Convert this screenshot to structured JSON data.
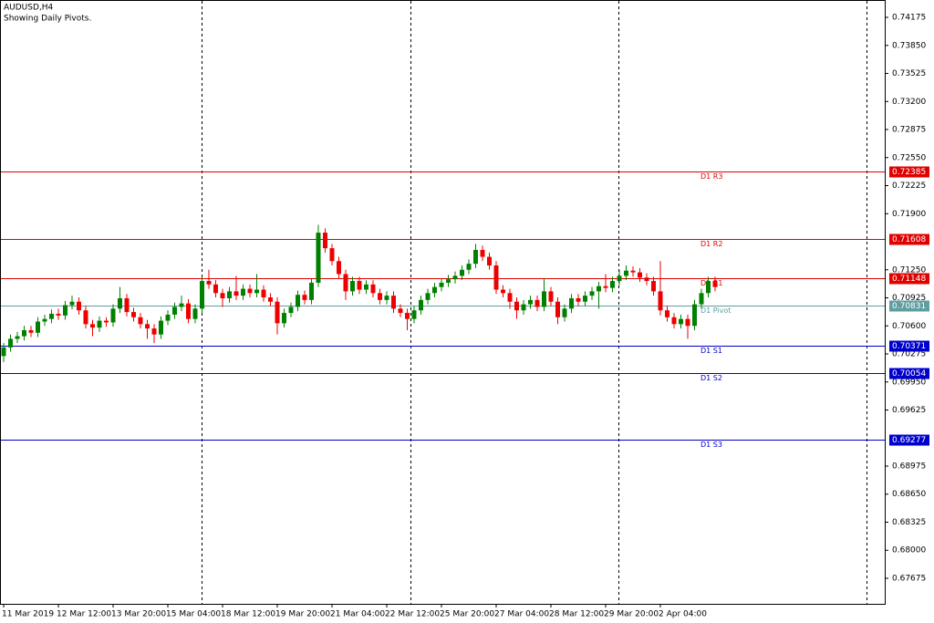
{
  "chart_data": {
    "type": "candlestick",
    "title": "AUDUSD,H4",
    "subtitle": "Showing Daily Pivots.",
    "up_color": "#008000",
    "down_color": "#ee0000",
    "ylim": [
      0.67379,
      0.74376
    ],
    "yticks": [
      0.74175,
      {
        "value": 0.7385,
        "label": "0.73850"
      },
      0.73525,
      {
        "value": 0.732,
        "label": "0.73200"
      },
      0.72875,
      {
        "value": 0.7255,
        "label": "0.72550"
      },
      0.72225,
      {
        "value": 0.719,
        "label": "0.71900"
      },
      {
        "value": 0.7125,
        "label": "0.71250"
      },
      0.70925,
      {
        "value": 0.706,
        "label": "0.70600"
      },
      0.70275,
      {
        "value": 0.6995,
        "label": "0.69950"
      },
      0.69625,
      0.68975,
      {
        "value": 0.6865,
        "label": "0.68650"
      },
      0.68325,
      {
        "value": 0.68,
        "label": "0.68000"
      },
      0.67675
    ],
    "levels": [
      {
        "name": "D1 R3",
        "value": 0.72385,
        "color": "#e00000"
      },
      {
        "name": "D1 R2",
        "value": 0.71608,
        "color": "#e00000"
      },
      {
        "name": "D1 R1",
        "value": 0.71148,
        "color": "#e00000"
      },
      {
        "name": "D1 Pivot",
        "value": 0.70831,
        "color": "#5f9ea0"
      },
      {
        "name": "D1 S1",
        "value": 0.70371,
        "color": "#0000cc"
      },
      {
        "name": "D1 S2",
        "value": 0.70054,
        "color": "#0000cc"
      },
      {
        "name": "D1 S3",
        "value": 0.69277,
        "color": "#0000cc"
      }
    ],
    "categories": [
      "11 Mar 2019",
      null,
      null,
      null,
      null,
      null,
      null,
      null,
      "12 Mar 12:00",
      null,
      null,
      null,
      null,
      null,
      null,
      null,
      "13 Mar 20:00",
      null,
      null,
      null,
      null,
      null,
      null,
      null,
      "15 Mar 04:00",
      null,
      null,
      null,
      null,
      null,
      null,
      null,
      "18 Mar 12:00",
      null,
      null,
      null,
      null,
      null,
      null,
      null,
      "19 Mar 20:00",
      null,
      null,
      null,
      null,
      null,
      null,
      null,
      "21 Mar 04:00",
      null,
      null,
      null,
      null,
      null,
      null,
      null,
      "22 Mar 12:00",
      null,
      null,
      null,
      null,
      null,
      null,
      null,
      "25 Mar 20:00",
      null,
      null,
      null,
      null,
      null,
      null,
      null,
      "27 Mar 04:00",
      null,
      null,
      null,
      null,
      null,
      null,
      null,
      "28 Mar 12:00",
      null,
      null,
      null,
      null,
      null,
      null,
      null,
      "29 Mar 20:00",
      null,
      null,
      null,
      null,
      null,
      null,
      null,
      "2 Apr 04:00",
      null,
      null,
      null,
      null,
      null,
      null,
      null,
      null
    ],
    "candles": [
      [
        0.7025,
        0.704,
        0.7018,
        0.7035
      ],
      [
        0.7035,
        0.705,
        0.703,
        0.7045
      ],
      [
        0.7045,
        0.7053,
        0.704,
        0.7048
      ],
      [
        0.7048,
        0.706,
        0.7043,
        0.7055
      ],
      [
        0.7055,
        0.706,
        0.7047,
        0.7052
      ],
      [
        0.7052,
        0.707,
        0.7047,
        0.7065
      ],
      [
        0.7065,
        0.7073,
        0.706,
        0.7068
      ],
      [
        0.7068,
        0.7079,
        0.7063,
        0.7074
      ],
      [
        0.7074,
        0.708,
        0.7067,
        0.7072
      ],
      [
        0.7072,
        0.7089,
        0.7067,
        0.7084
      ],
      [
        0.7084,
        0.7095,
        0.7079,
        0.7088
      ],
      [
        0.7088,
        0.7093,
        0.7073,
        0.7078
      ],
      [
        0.7078,
        0.7083,
        0.7057,
        0.7062
      ],
      [
        0.7062,
        0.7067,
        0.7048,
        0.7058
      ],
      [
        0.7058,
        0.7071,
        0.7053,
        0.7066
      ],
      [
        0.7066,
        0.707,
        0.7059,
        0.7064
      ],
      [
        0.7064,
        0.7085,
        0.7059,
        0.708
      ],
      [
        0.708,
        0.7105,
        0.7075,
        0.7092
      ],
      [
        0.7092,
        0.7097,
        0.7071,
        0.7076
      ],
      [
        0.7076,
        0.7081,
        0.7065,
        0.707
      ],
      [
        0.707,
        0.7075,
        0.7057,
        0.7062
      ],
      [
        0.7062,
        0.7067,
        0.7045,
        0.7057
      ],
      [
        0.7057,
        0.7062,
        0.704,
        0.705
      ],
      [
        0.705,
        0.7071,
        0.7045,
        0.7066
      ],
      [
        0.7066,
        0.7078,
        0.7061,
        0.7073
      ],
      [
        0.7073,
        0.7087,
        0.7068,
        0.7082
      ],
      [
        0.7082,
        0.7095,
        0.7077,
        0.7086
      ],
      [
        0.7086,
        0.7091,
        0.7063,
        0.7068
      ],
      [
        0.7068,
        0.7085,
        0.7063,
        0.708
      ],
      [
        0.708,
        0.7117,
        0.7075,
        0.7112
      ],
      [
        0.7112,
        0.7125,
        0.7103,
        0.7108
      ],
      [
        0.7108,
        0.7113,
        0.7093,
        0.7098
      ],
      [
        0.7098,
        0.7103,
        0.7082,
        0.7092
      ],
      [
        0.7092,
        0.7105,
        0.7087,
        0.71
      ],
      [
        0.71,
        0.7118,
        0.709,
        0.7095
      ],
      [
        0.7095,
        0.7108,
        0.709,
        0.7103
      ],
      [
        0.7103,
        0.7108,
        0.7093,
        0.7098
      ],
      [
        0.7098,
        0.712,
        0.7093,
        0.7102
      ],
      [
        0.7102,
        0.7107,
        0.7088,
        0.7093
      ],
      [
        0.7093,
        0.7098,
        0.7083,
        0.7088
      ],
      [
        0.7088,
        0.7093,
        0.705,
        0.7063
      ],
      [
        0.7063,
        0.708,
        0.7058,
        0.7075
      ],
      [
        0.7075,
        0.7087,
        0.707,
        0.7082
      ],
      [
        0.7082,
        0.7101,
        0.7077,
        0.7096
      ],
      [
        0.7096,
        0.7101,
        0.7085,
        0.709
      ],
      [
        0.709,
        0.7115,
        0.7085,
        0.711
      ],
      [
        0.711,
        0.7177,
        0.7105,
        0.7168
      ],
      [
        0.7168,
        0.7173,
        0.7145,
        0.715
      ],
      [
        0.715,
        0.7155,
        0.713,
        0.7135
      ],
      [
        0.7135,
        0.714,
        0.7115,
        0.712
      ],
      [
        0.712,
        0.7125,
        0.709,
        0.71
      ],
      [
        0.71,
        0.7117,
        0.7095,
        0.7112
      ],
      [
        0.7112,
        0.7117,
        0.7097,
        0.7102
      ],
      [
        0.7102,
        0.7113,
        0.7097,
        0.7108
      ],
      [
        0.7108,
        0.7113,
        0.7093,
        0.7098
      ],
      [
        0.7098,
        0.7103,
        0.7085,
        0.709
      ],
      [
        0.709,
        0.71,
        0.7085,
        0.7095
      ],
      [
        0.7095,
        0.71,
        0.7075,
        0.708
      ],
      [
        0.708,
        0.7085,
        0.707,
        0.7075
      ],
      [
        0.7075,
        0.708,
        0.7055,
        0.7068
      ],
      [
        0.7068,
        0.7083,
        0.7063,
        0.7078
      ],
      [
        0.7078,
        0.7095,
        0.7073,
        0.709
      ],
      [
        0.709,
        0.7103,
        0.7085,
        0.7098
      ],
      [
        0.7098,
        0.711,
        0.7093,
        0.7105
      ],
      [
        0.7105,
        0.7115,
        0.71,
        0.711
      ],
      [
        0.711,
        0.7119,
        0.7105,
        0.7114
      ],
      [
        0.7114,
        0.7123,
        0.7109,
        0.7118
      ],
      [
        0.7118,
        0.713,
        0.7113,
        0.7125
      ],
      [
        0.7125,
        0.7137,
        0.712,
        0.7132
      ],
      [
        0.7132,
        0.7155,
        0.7127,
        0.7148
      ],
      [
        0.7148,
        0.7153,
        0.7135,
        0.714
      ],
      [
        0.714,
        0.7145,
        0.7125,
        0.713
      ],
      [
        0.713,
        0.7135,
        0.7097,
        0.7102
      ],
      [
        0.7102,
        0.7107,
        0.7093,
        0.7098
      ],
      [
        0.7098,
        0.7103,
        0.708,
        0.7088
      ],
      [
        0.7088,
        0.7093,
        0.7068,
        0.7078
      ],
      [
        0.7078,
        0.709,
        0.7073,
        0.7085
      ],
      [
        0.7085,
        0.7095,
        0.708,
        0.709
      ],
      [
        0.709,
        0.7095,
        0.7077,
        0.7082
      ],
      [
        0.7082,
        0.7115,
        0.7077,
        0.71
      ],
      [
        0.71,
        0.7105,
        0.7083,
        0.7088
      ],
      [
        0.7088,
        0.7093,
        0.7062,
        0.707
      ],
      [
        0.707,
        0.7085,
        0.7065,
        0.708
      ],
      [
        0.708,
        0.7097,
        0.7075,
        0.7092
      ],
      [
        0.7092,
        0.7097,
        0.7083,
        0.7088
      ],
      [
        0.7088,
        0.71,
        0.7083,
        0.7095
      ],
      [
        0.7095,
        0.7105,
        0.709,
        0.71
      ],
      [
        0.71,
        0.7111,
        0.708,
        0.7106
      ],
      [
        0.7106,
        0.712,
        0.7099,
        0.7104
      ],
      [
        0.7104,
        0.7117,
        0.7099,
        0.7112
      ],
      [
        0.7112,
        0.7125,
        0.7107,
        0.7118
      ],
      [
        0.7118,
        0.713,
        0.7113,
        0.7124
      ],
      [
        0.7124,
        0.7129,
        0.7117,
        0.7122
      ],
      [
        0.7122,
        0.7127,
        0.7111,
        0.7116
      ],
      [
        0.7116,
        0.7121,
        0.7107,
        0.7112
      ],
      [
        0.7112,
        0.7117,
        0.7095,
        0.71
      ],
      [
        0.71,
        0.7135,
        0.7072,
        0.7078
      ],
      [
        0.7078,
        0.7083,
        0.7065,
        0.707
      ],
      [
        0.707,
        0.7075,
        0.7057,
        0.7062
      ],
      [
        0.7062,
        0.7073,
        0.7057,
        0.7068
      ],
      [
        0.7068,
        0.7073,
        0.7045,
        0.706
      ],
      [
        0.706,
        0.709,
        0.7055,
        0.7085
      ],
      [
        0.7085,
        0.7103,
        0.708,
        0.7098
      ],
      [
        0.7098,
        0.7117,
        0.7093,
        0.7112
      ],
      [
        0.7112,
        0.7117,
        0.71,
        0.7105
      ]
    ]
  }
}
